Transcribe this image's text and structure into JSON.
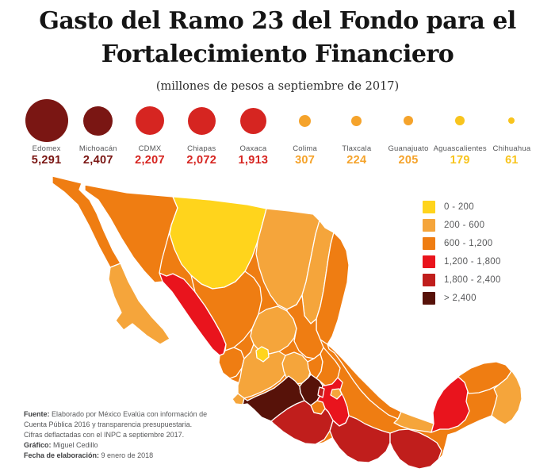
{
  "header": {
    "title": "Gasto del Ramo 23 del Fondo para el Fortalecimiento Financiero",
    "subtitle": "(millones de pesos a septiembre de 2017)"
  },
  "chart_data": {
    "type": "choropleth_map_with_proportional_symbols",
    "title": "Gasto del Ramo 23 del Fondo para el Fortalecimiento Financiero",
    "subtitle": "(millones de pesos a septiembre de 2017)",
    "legend_position": "right",
    "legend": [
      {
        "label": "0 - 200",
        "color": "#FFD41C"
      },
      {
        "label": "200 - 600",
        "color": "#F5A53B"
      },
      {
        "label": "600 - 1,200",
        "color": "#EF7D12"
      },
      {
        "label": "1,200 - 1,800",
        "color": "#E9141D"
      },
      {
        "label": "1,800 - 2,400",
        "color": "#C01E1C"
      },
      {
        "label": "> 2,400",
        "color": "#571209"
      }
    ],
    "top_states": [
      {
        "name": "Edomex",
        "value": 5291,
        "value_label": "5,291",
        "color": "#7A1613"
      },
      {
        "name": "Michoacán",
        "value": 2407,
        "value_label": "2,407",
        "color": "#7A1613"
      },
      {
        "name": "CDMX",
        "value": 2207,
        "value_label": "2,207",
        "color": "#D62521"
      },
      {
        "name": "Chiapas",
        "value": 2072,
        "value_label": "2,072",
        "color": "#D62521"
      },
      {
        "name": "Oaxaca",
        "value": 1913,
        "value_label": "1,913",
        "color": "#D62521"
      },
      {
        "name": "Colima",
        "value": 307,
        "value_label": "307",
        "color": "#F5A32B"
      },
      {
        "name": "Tlaxcala",
        "value": 224,
        "value_label": "224",
        "color": "#F5A32B"
      },
      {
        "name": "Guanajuato",
        "value": 205,
        "value_label": "205",
        "color": "#F5A32B"
      },
      {
        "name": "Aguascalientes",
        "value": 179,
        "value_label": "179",
        "color": "#F8C41D"
      },
      {
        "name": "Chihuahua",
        "value": 61,
        "value_label": "61",
        "color": "#F8C41D"
      }
    ],
    "states": [
      {
        "id": "bc",
        "name": "Baja California",
        "bucket": 2
      },
      {
        "id": "bcs",
        "name": "Baja California Sur",
        "bucket": 1
      },
      {
        "id": "son",
        "name": "Sonora",
        "bucket": 2
      },
      {
        "id": "chh",
        "name": "Chihuahua",
        "bucket": 0
      },
      {
        "id": "sin",
        "name": "Sinaloa",
        "bucket": 3
      },
      {
        "id": "dur",
        "name": "Durango",
        "bucket": 2
      },
      {
        "id": "coa",
        "name": "Coahuila",
        "bucket": 1
      },
      {
        "id": "nl",
        "name": "Nuevo León",
        "bucket": 1
      },
      {
        "id": "tam",
        "name": "Tamaulipas",
        "bucket": 2
      },
      {
        "id": "zac",
        "name": "Zacatecas",
        "bucket": 1
      },
      {
        "id": "ags",
        "name": "Aguascalientes",
        "bucket": 0
      },
      {
        "id": "slp",
        "name": "San Luis Potosí",
        "bucket": 2
      },
      {
        "id": "nay",
        "name": "Nayarit",
        "bucket": 2
      },
      {
        "id": "jal",
        "name": "Jalisco",
        "bucket": 1
      },
      {
        "id": "col",
        "name": "Colima",
        "bucket": 1
      },
      {
        "id": "mic",
        "name": "Michoacán",
        "bucket": 5
      },
      {
        "id": "gto",
        "name": "Guanajuato",
        "bucket": 1
      },
      {
        "id": "qro",
        "name": "Querétaro",
        "bucket": 2
      },
      {
        "id": "hgo",
        "name": "Hidalgo",
        "bucket": 2
      },
      {
        "id": "mex",
        "name": "Estado de México",
        "bucket": 5
      },
      {
        "id": "cdmx",
        "name": "CDMX",
        "bucket": 4
      },
      {
        "id": "mor",
        "name": "Morelos",
        "bucket": 2
      },
      {
        "id": "tlx",
        "name": "Tlaxcala",
        "bucket": 1
      },
      {
        "id": "pue",
        "name": "Puebla",
        "bucket": 3
      },
      {
        "id": "gro",
        "name": "Guerrero",
        "bucket": 4
      },
      {
        "id": "ver",
        "name": "Veracruz",
        "bucket": 2
      },
      {
        "id": "oax",
        "name": "Oaxaca",
        "bucket": 4
      },
      {
        "id": "chp",
        "name": "Chiapas",
        "bucket": 4
      },
      {
        "id": "tab",
        "name": "Tabasco",
        "bucket": 1
      },
      {
        "id": "cam",
        "name": "Campeche",
        "bucket": 3
      },
      {
        "id": "yuc",
        "name": "Yucatán",
        "bucket": 2
      },
      {
        "id": "qr",
        "name": "Quintana Roo",
        "bucket": 1
      }
    ]
  },
  "footer": [
    {
      "label": "Fuente:",
      "text": "Elaborado por México Evalúa con información de Cuenta Pública 2016 y transparencia presupuestaria. Cifras deflactadas con el INPC a septiembre 2017."
    },
    {
      "label": "Gráfico:",
      "text": "Miguel Cedillo"
    },
    {
      "label": "Fecha de elaboración:",
      "text": "9 enero de 2018"
    }
  ]
}
